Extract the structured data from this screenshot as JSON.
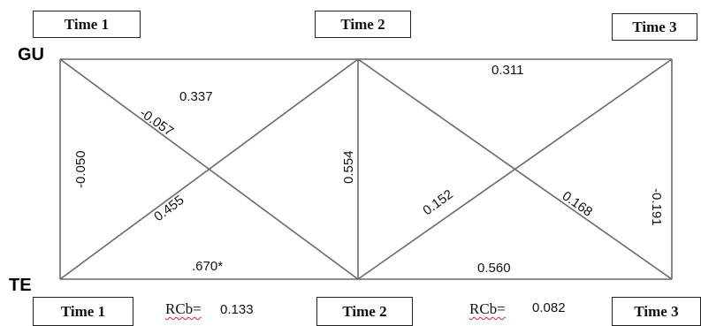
{
  "header": {
    "time1": "Time 1",
    "time2": "Time 2",
    "time3": "Time 3"
  },
  "footer": {
    "time1": "Time 1",
    "time2": "Time 2",
    "time3": "Time 3"
  },
  "variables": {
    "top": "GU",
    "bottom": "TE"
  },
  "paths": {
    "gu1_gu2": "0.337",
    "gu2_gu3": "0.311",
    "gu1_te2": "-0.057",
    "te1_gu2": "0.455",
    "gu1_te1": "-0.050",
    "te1_te2": ".670*",
    "gu2_te2": "0.554",
    "te2_gu3": "0.152",
    "gu2_te3": "0.168",
    "gu3_te3": "-0.191",
    "te2_te3": "0.560"
  },
  "rcb": [
    {
      "label": "RCb=",
      "value": "0.133"
    },
    {
      "label": "RCb=",
      "value": "0.082"
    }
  ],
  "colors": {
    "line": "#6a6a6a",
    "frame": "#222222",
    "text": "#111111",
    "spellcheck_underline": "#dd2233"
  }
}
